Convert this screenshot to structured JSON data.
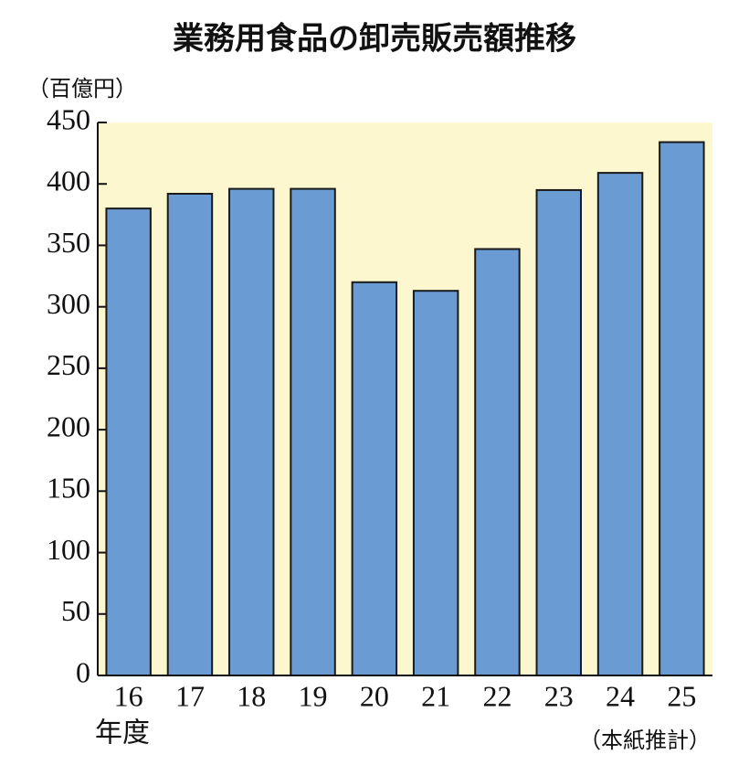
{
  "chart_data": {
    "type": "bar",
    "title": "業務用食品の卸売販売額推移",
    "y_label": "（百億円）",
    "x_label": "年度",
    "note": "（本紙推計）",
    "categories": [
      "16",
      "17",
      "18",
      "19",
      "20",
      "21",
      "22",
      "23",
      "24",
      "25"
    ],
    "values": [
      380,
      392,
      396,
      396,
      320,
      313,
      347,
      395,
      409,
      434
    ],
    "color": "#6a9bd3",
    "ylim": [
      0,
      450
    ],
    "yticks": [
      0,
      50,
      100,
      150,
      200,
      250,
      300,
      350,
      400,
      450
    ],
    "grid": false
  }
}
